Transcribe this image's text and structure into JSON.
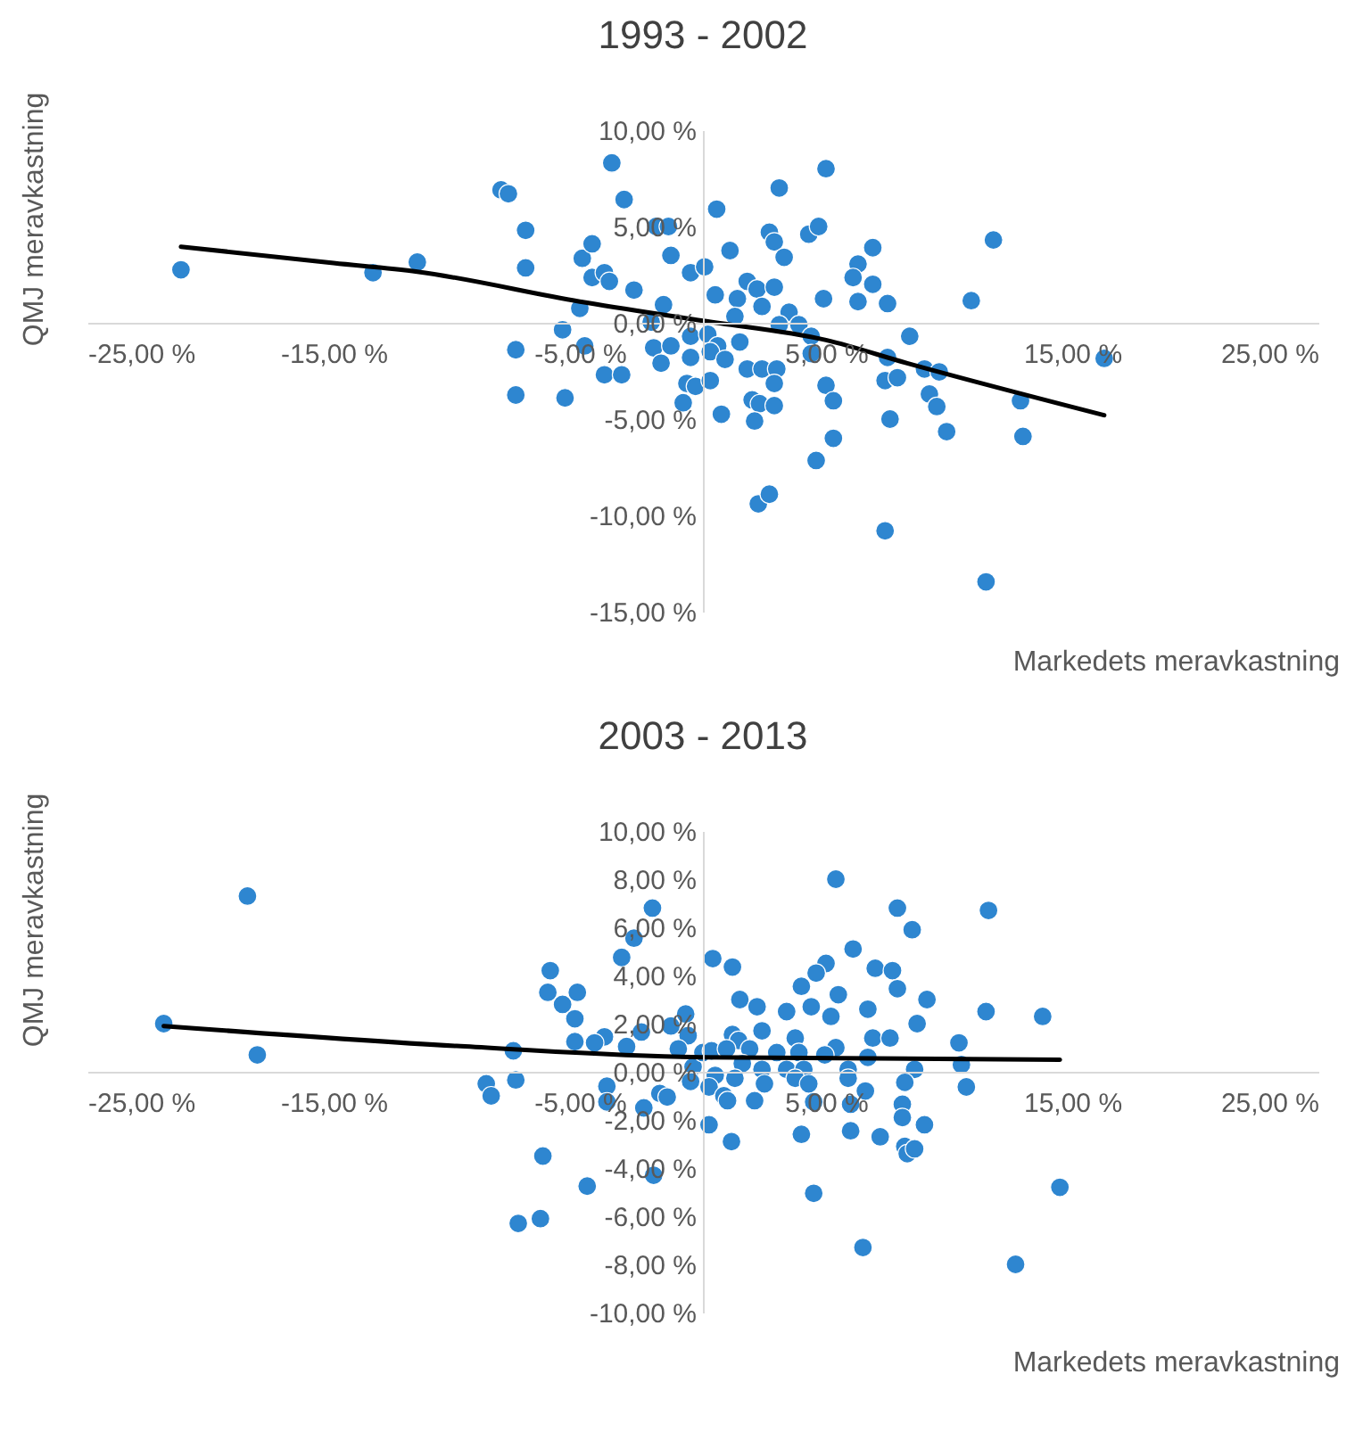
{
  "chart_data": [
    {
      "type": "scatter",
      "title": "1993 - 2002",
      "xlabel": "Markedets meravkastning",
      "ylabel": "QMJ meravkastning",
      "xlim": [
        -25,
        25
      ],
      "ylim": [
        -15,
        10
      ],
      "xticks": [
        {
          "value": -25,
          "label": "-25,00 %"
        },
        {
          "value": -15,
          "label": "-15,00 %"
        },
        {
          "value": -5,
          "label": "-5,00 %"
        },
        {
          "value": 5,
          "label": "5,00 %"
        },
        {
          "value": 15,
          "label": "15,00 %"
        },
        {
          "value": 25,
          "label": "25,00 %"
        }
      ],
      "yticks": [
        {
          "value": 10,
          "label": "10,00 %"
        },
        {
          "value": 5,
          "label": "5,00 %"
        },
        {
          "value": 0,
          "label": "0,00 %"
        },
        {
          "value": -5,
          "label": "-5,00 %"
        },
        {
          "value": -10,
          "label": "-10,00 %"
        },
        {
          "value": -15,
          "label": "-15,00 %"
        }
      ],
      "grid": false,
      "series": [
        {
          "color": "#2e86d0",
          "marker": "circle",
          "x": [
            -21.2,
            -13.4,
            -11.6,
            -8.2,
            -7.9,
            -7.2,
            -7.2,
            -7.6,
            -7.6,
            -5.6,
            -5.7,
            -5.0,
            -4.9,
            -4.5,
            -4.5,
            -4.0,
            -3.8,
            -3.7,
            -3.2,
            -2.8,
            -4.8,
            -4.0,
            -3.3,
            -2.0,
            -1.7,
            -1.6,
            -1.9,
            -1.4,
            -1.3,
            -1.3,
            -0.5,
            -0.5,
            -0.5,
            -0.65,
            -0.3,
            -0.8,
            -2.1,
            0.07,
            0.56,
            5.0,
            3.1,
            2.7,
            2.9,
            1.1,
            3.3,
            4.3,
            4.7,
            0.5,
            1.8,
            2.2,
            2.9,
            1.4,
            2.4,
            1.3,
            3.5,
            4.9,
            6.3,
            6.1,
            6.9,
            6.9,
            6.3,
            7.5,
            10.9,
            11.8,
            3.9,
            3.1,
            4.4,
            0.2,
            0.6,
            1.5,
            0.3,
            0.9,
            1.8,
            2.4,
            3.0,
            4.4,
            0.3,
            2.9,
            2.0,
            2.3,
            2.9,
            0.75,
            2.1,
            5.0,
            5.3,
            5.3,
            4.6,
            2.25,
            2.7,
            7.4,
            11.5,
            8.4,
            7.5,
            7.4,
            7.9,
            9.0,
            9.6,
            9.2,
            9.5,
            7.6,
            9.9,
            12.9,
            13.0,
            16.3
          ],
          "values": [
            2.75,
            2.6,
            3.15,
            6.9,
            6.7,
            4.8,
            2.85,
            -1.4,
            -3.75,
            -3.9,
            -0.36,
            0.75,
            3.35,
            4.1,
            2.35,
            2.6,
            2.15,
            8.3,
            6.4,
            1.7,
            -1.2,
            -2.7,
            -2.7,
            -1.3,
            -2.1,
            0.94,
            5.0,
            5.0,
            3.5,
            -1.2,
            2.6,
            -0.7,
            -1.8,
            -3.15,
            -3.3,
            -4.15,
            0.03,
            2.9,
            5.9,
            8.0,
            7.0,
            4.7,
            4.2,
            3.75,
            3.4,
            4.6,
            5.0,
            1.45,
            2.15,
            1.75,
            1.85,
            1.25,
            0.85,
            0.33,
            0.55,
            1.25,
            3.05,
            2.35,
            3.9,
            2.0,
            1.1,
            1.0,
            1.15,
            4.3,
            -0.1,
            -0.1,
            -0.7,
            -0.6,
            -1.2,
            -1.0,
            -1.5,
            -1.9,
            -2.4,
            -2.4,
            -2.4,
            -1.6,
            -3.0,
            -3.15,
            -4.0,
            -4.2,
            -4.3,
            -4.75,
            -5.1,
            -3.25,
            -4.05,
            -6.0,
            -7.15,
            -9.4,
            -8.9,
            -10.8,
            -13.45,
            -0.7,
            -1.8,
            -3.0,
            -2.85,
            -2.4,
            -2.55,
            -3.7,
            -4.35,
            -5.0,
            -5.65,
            -4.05,
            -5.9,
            -1.85
          ]
        },
        {
          "type": "line",
          "color": "#000000",
          "x": [
            -21.2,
            -15,
            -11.6,
            -5,
            0,
            5,
            8.3,
            16.3
          ],
          "values": [
            3.95,
            3.1,
            2.65,
            1.1,
            0.1,
            -0.9,
            -2.1,
            -4.8
          ]
        }
      ]
    },
    {
      "type": "scatter",
      "title": "2003 - 2013",
      "xlabel": "Markedets meravkastning",
      "ylabel": "QMJ meravkastning",
      "xlim": [
        -25,
        25
      ],
      "ylim": [
        -10,
        10
      ],
      "xticks": [
        {
          "value": -25,
          "label": "-25,00 %"
        },
        {
          "value": -15,
          "label": "-15,00 %"
        },
        {
          "value": -5,
          "label": "-5,00 %"
        },
        {
          "value": 5,
          "label": "5,00 %"
        },
        {
          "value": 15,
          "label": "15,00 %"
        },
        {
          "value": 25,
          "label": "25,00 %"
        }
      ],
      "yticks": [
        {
          "value": 10,
          "label": "10,00 %"
        },
        {
          "value": 8,
          "label": "8,00 %"
        },
        {
          "value": 6,
          "label": "6,00 %"
        },
        {
          "value": 4,
          "label": "4,00 %"
        },
        {
          "value": 2,
          "label": "2,00 %"
        },
        {
          "value": 0,
          "label": "0,00 %"
        },
        {
          "value": -2,
          "label": "-2,00 %"
        },
        {
          "value": -4,
          "label": "-4,00 %"
        },
        {
          "value": -6,
          "label": "-6,00 %"
        },
        {
          "value": -8,
          "label": "-8,00 %"
        },
        {
          "value": -10,
          "label": "-10,00 %"
        }
      ],
      "grid": false,
      "series": [
        {
          "color": "#2e86d0",
          "marker": "circle",
          "x": [
            -21.9,
            -18.5,
            -18.1,
            -7.7,
            -7.6,
            -8.8,
            -8.6,
            -6.5,
            -7.5,
            -6.6,
            -4.7,
            -6.2,
            -6.3,
            -5.7,
            -5.1,
            -5.2,
            -5.2,
            -2.05,
            -2.8,
            -3.3,
            -4.0,
            -4.4,
            -2.5,
            -3.1,
            -3.9,
            -3.9,
            -2.4,
            -1.75,
            -1.45,
            -2.0,
            -1.3,
            -0.7,
            -0.6,
            -1.0,
            -0.4,
            -0.5,
            0.25,
            0.4,
            1.2,
            5.4,
            7.9,
            8.5,
            11.6,
            6.1,
            5.0,
            4.6,
            4.0,
            5.5,
            7.0,
            7.7,
            7.9,
            9.1,
            4.4,
            3.4,
            5.2,
            6.7,
            8.7,
            11.5,
            13.8,
            1.5,
            2.2,
            2.4,
            1.2,
            1.45,
            3.75,
            6.9,
            7.6,
            10.4,
            5.4,
            6.7,
            10.5,
            0.0,
            0.35,
            0.96,
            1.9,
            3.0,
            3.9,
            4.95,
            1.6,
            2.4,
            3.4,
            4.1,
            5.9,
            5.9,
            0.5,
            1.3,
            2.5,
            3.75,
            8.6,
            8.2,
            4.3,
            6.6,
            10.7,
            0.25,
            0.85,
            1.0,
            2.1,
            4.5,
            6.0,
            8.1,
            8.1,
            1.16,
            4.0,
            6.0,
            7.2,
            9.0,
            8.2,
            8.3,
            8.6,
            4.5,
            6.5,
            12.7,
            14.5
          ],
          "values": [
            2.0,
            7.3,
            0.7,
            0.87,
            -0.34,
            -0.5,
            -1.0,
            -3.5,
            -6.3,
            -6.1,
            -4.75,
            4.2,
            3.3,
            2.8,
            3.3,
            2.2,
            1.25,
            6.8,
            5.55,
            4.75,
            1.45,
            1.2,
            1.65,
            1.05,
            -0.6,
            -1.25,
            -1.5,
            -0.9,
            -1.05,
            -4.3,
            1.9,
            2.4,
            1.5,
            0.95,
            0.2,
            -0.4,
            -2.2,
            4.7,
            4.35,
            8.0,
            6.8,
            5.9,
            6.7,
            5.1,
            4.5,
            4.1,
            3.55,
            3.2,
            4.3,
            4.2,
            3.45,
            3.0,
            2.7,
            2.5,
            2.3,
            2.6,
            2.0,
            2.5,
            2.3,
            3.0,
            2.7,
            1.7,
            1.55,
            1.3,
            1.4,
            1.4,
            1.4,
            1.2,
            1.0,
            0.6,
            0.3,
            0.8,
            0.87,
            0.95,
            0.95,
            0.8,
            0.8,
            0.7,
            0.34,
            0.1,
            0.1,
            0.1,
            0.1,
            -0.27,
            -0.15,
            -0.27,
            -0.5,
            -0.27,
            0.1,
            -0.44,
            -0.5,
            -0.8,
            -0.63,
            -0.63,
            -1.0,
            -1.2,
            -1.2,
            -1.25,
            -1.35,
            -1.35,
            -1.9,
            -2.9,
            -2.6,
            -2.45,
            -2.7,
            -2.2,
            -3.1,
            -3.4,
            -3.2,
            -5.05,
            -7.3,
            -8.0,
            -4.8
          ]
        },
        {
          "type": "line",
          "color": "#000000",
          "x": [
            -21.9,
            -10,
            0,
            14.5
          ],
          "values": [
            1.9,
            1.07,
            0.6,
            0.5
          ]
        }
      ]
    }
  ]
}
